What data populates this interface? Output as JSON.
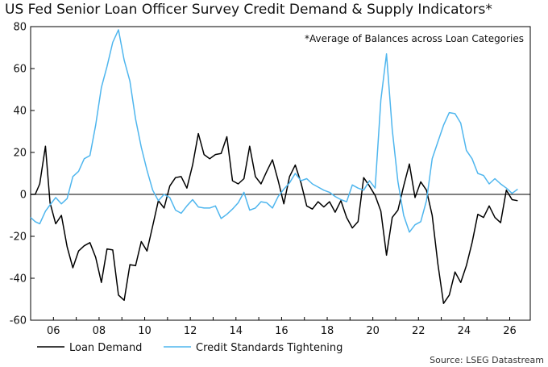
{
  "title": "US Fed Senior Loan Officer Survey Credit Demand & Supply Indicators*",
  "note": "*Average of Balances across Loan Categories",
  "source": "Source: LSEG Datastream",
  "chart_data": {
    "type": "line",
    "ylim": [
      -60,
      80
    ],
    "yticks": [
      -60,
      -40,
      -20,
      0,
      20,
      40,
      60,
      80
    ],
    "xlim": [
      2005.0,
      2026.9
    ],
    "xticks": [
      {
        "value": 2006,
        "label": "06"
      },
      {
        "value": 2008,
        "label": "08"
      },
      {
        "value": 2010,
        "label": "10"
      },
      {
        "value": 2012,
        "label": "12"
      },
      {
        "value": 2014,
        "label": "14"
      },
      {
        "value": 2016,
        "label": "16"
      },
      {
        "value": 2018,
        "label": "18"
      },
      {
        "value": 2020,
        "label": "20"
      },
      {
        "value": 2022,
        "label": "22"
      },
      {
        "value": 2024,
        "label": "24"
      },
      {
        "value": 2026,
        "label": "26"
      }
    ],
    "grid": false,
    "legend": "bottom-left",
    "series": [
      {
        "name": "Loan Demand",
        "color": "#000000",
        "points": [
          [
            2005.0,
            0
          ],
          [
            2005.2,
            0
          ],
          [
            2005.4,
            5
          ],
          [
            2005.65,
            23
          ],
          [
            2005.85,
            -4
          ],
          [
            2006.1,
            -14
          ],
          [
            2006.35,
            -10
          ],
          [
            2006.6,
            -25
          ],
          [
            2006.85,
            -35
          ],
          [
            2007.1,
            -27
          ],
          [
            2007.35,
            -24.5
          ],
          [
            2007.6,
            -23
          ],
          [
            2007.85,
            -30
          ],
          [
            2008.1,
            -42
          ],
          [
            2008.35,
            -26
          ],
          [
            2008.6,
            -26.5
          ],
          [
            2008.85,
            -48
          ],
          [
            2009.1,
            -50.5
          ],
          [
            2009.35,
            -33.5
          ],
          [
            2009.6,
            -34
          ],
          [
            2009.85,
            -22.5
          ],
          [
            2010.1,
            -27
          ],
          [
            2010.35,
            -15
          ],
          [
            2010.6,
            -3
          ],
          [
            2010.85,
            -6.5
          ],
          [
            2011.1,
            4
          ],
          [
            2011.35,
            8
          ],
          [
            2011.6,
            8.5
          ],
          [
            2011.85,
            3
          ],
          [
            2012.1,
            14
          ],
          [
            2012.35,
            29
          ],
          [
            2012.6,
            19
          ],
          [
            2012.85,
            17
          ],
          [
            2013.1,
            19
          ],
          [
            2013.35,
            19.5
          ],
          [
            2013.6,
            27.5
          ],
          [
            2013.85,
            6.5
          ],
          [
            2014.1,
            5
          ],
          [
            2014.35,
            7.5
          ],
          [
            2014.6,
            23
          ],
          [
            2014.85,
            8.5
          ],
          [
            2015.1,
            5
          ],
          [
            2015.35,
            11
          ],
          [
            2015.6,
            16.5
          ],
          [
            2015.85,
            6.5
          ],
          [
            2016.1,
            -4.5
          ],
          [
            2016.35,
            8.5
          ],
          [
            2016.6,
            14
          ],
          [
            2016.85,
            5.5
          ],
          [
            2017.1,
            -5.5
          ],
          [
            2017.35,
            -7
          ],
          [
            2017.6,
            -3.5
          ],
          [
            2017.85,
            -6
          ],
          [
            2018.1,
            -3.5
          ],
          [
            2018.35,
            -8.5
          ],
          [
            2018.6,
            -3
          ],
          [
            2018.85,
            -11
          ],
          [
            2019.1,
            -16
          ],
          [
            2019.35,
            -13
          ],
          [
            2019.6,
            8
          ],
          [
            2019.85,
            4
          ],
          [
            2020.1,
            -0.5
          ],
          [
            2020.35,
            -8
          ],
          [
            2020.6,
            -29
          ],
          [
            2020.85,
            -11
          ],
          [
            2021.1,
            -7.5
          ],
          [
            2021.35,
            4
          ],
          [
            2021.6,
            14.5
          ],
          [
            2021.85,
            -1.5
          ],
          [
            2022.1,
            6
          ],
          [
            2022.35,
            2
          ],
          [
            2022.6,
            -10
          ],
          [
            2022.85,
            -33
          ],
          [
            2023.1,
            -52
          ],
          [
            2023.35,
            -48
          ],
          [
            2023.6,
            -37
          ],
          [
            2023.85,
            -42
          ],
          [
            2024.1,
            -34
          ],
          [
            2024.35,
            -23
          ],
          [
            2024.6,
            -9.5
          ],
          [
            2024.85,
            -11
          ],
          [
            2025.1,
            -5.5
          ],
          [
            2025.35,
            -11
          ],
          [
            2025.6,
            -13.5
          ],
          [
            2025.85,
            2
          ],
          [
            2026.1,
            -2.5
          ],
          [
            2026.35,
            -3
          ]
        ]
      },
      {
        "name": "Credit Standards Tightening",
        "color": "#4fb6ee",
        "points": [
          [
            2005.0,
            -11
          ],
          [
            2005.2,
            -13
          ],
          [
            2005.4,
            -14
          ],
          [
            2005.65,
            -8
          ],
          [
            2005.85,
            -5
          ],
          [
            2006.1,
            -1.5
          ],
          [
            2006.35,
            -4.5
          ],
          [
            2006.6,
            -2
          ],
          [
            2006.85,
            8.5
          ],
          [
            2007.1,
            11
          ],
          [
            2007.35,
            17
          ],
          [
            2007.6,
            18.5
          ],
          [
            2007.85,
            33
          ],
          [
            2008.1,
            51
          ],
          [
            2008.35,
            61
          ],
          [
            2008.6,
            72.5
          ],
          [
            2008.85,
            78.5
          ],
          [
            2009.1,
            64
          ],
          [
            2009.35,
            54
          ],
          [
            2009.6,
            36
          ],
          [
            2009.85,
            22.5
          ],
          [
            2010.1,
            11.5
          ],
          [
            2010.35,
            2
          ],
          [
            2010.6,
            -3
          ],
          [
            2010.85,
            0
          ],
          [
            2011.1,
            -1.5
          ],
          [
            2011.35,
            -7.5
          ],
          [
            2011.6,
            -9
          ],
          [
            2011.85,
            -5.5
          ],
          [
            2012.1,
            -2.5
          ],
          [
            2012.35,
            -6
          ],
          [
            2012.6,
            -6.5
          ],
          [
            2012.85,
            -6.5
          ],
          [
            2013.1,
            -5.5
          ],
          [
            2013.35,
            -11.5
          ],
          [
            2013.6,
            -9.5
          ],
          [
            2013.85,
            -7
          ],
          [
            2014.1,
            -4
          ],
          [
            2014.35,
            1
          ],
          [
            2014.6,
            -7.5
          ],
          [
            2014.85,
            -6.5
          ],
          [
            2015.1,
            -3.5
          ],
          [
            2015.35,
            -4
          ],
          [
            2015.6,
            -6.5
          ],
          [
            2015.85,
            -1
          ],
          [
            2016.1,
            2.5
          ],
          [
            2016.35,
            5.5
          ],
          [
            2016.6,
            10
          ],
          [
            2016.85,
            6.5
          ],
          [
            2017.1,
            7.5
          ],
          [
            2017.35,
            5
          ],
          [
            2017.6,
            3.5
          ],
          [
            2017.85,
            2
          ],
          [
            2018.1,
            1
          ],
          [
            2018.35,
            -1
          ],
          [
            2018.6,
            -2.5
          ],
          [
            2018.85,
            -3.5
          ],
          [
            2019.1,
            4.5
          ],
          [
            2019.35,
            3
          ],
          [
            2019.6,
            2
          ],
          [
            2019.85,
            6.5
          ],
          [
            2020.1,
            3
          ],
          [
            2020.35,
            45
          ],
          [
            2020.6,
            67
          ],
          [
            2020.85,
            31
          ],
          [
            2021.1,
            6
          ],
          [
            2021.35,
            -10
          ],
          [
            2021.6,
            -18
          ],
          [
            2021.85,
            -14.5
          ],
          [
            2022.1,
            -13
          ],
          [
            2022.35,
            -3
          ],
          [
            2022.6,
            17
          ],
          [
            2022.85,
            25
          ],
          [
            2023.1,
            33
          ],
          [
            2023.35,
            39
          ],
          [
            2023.6,
            38.5
          ],
          [
            2023.85,
            34
          ],
          [
            2024.1,
            21
          ],
          [
            2024.35,
            17
          ],
          [
            2024.6,
            10
          ],
          [
            2024.85,
            9
          ],
          [
            2025.1,
            5
          ],
          [
            2025.35,
            7.5
          ],
          [
            2025.6,
            5
          ],
          [
            2025.85,
            3
          ],
          [
            2026.1,
            0.5
          ],
          [
            2026.35,
            2.5
          ]
        ]
      }
    ]
  }
}
